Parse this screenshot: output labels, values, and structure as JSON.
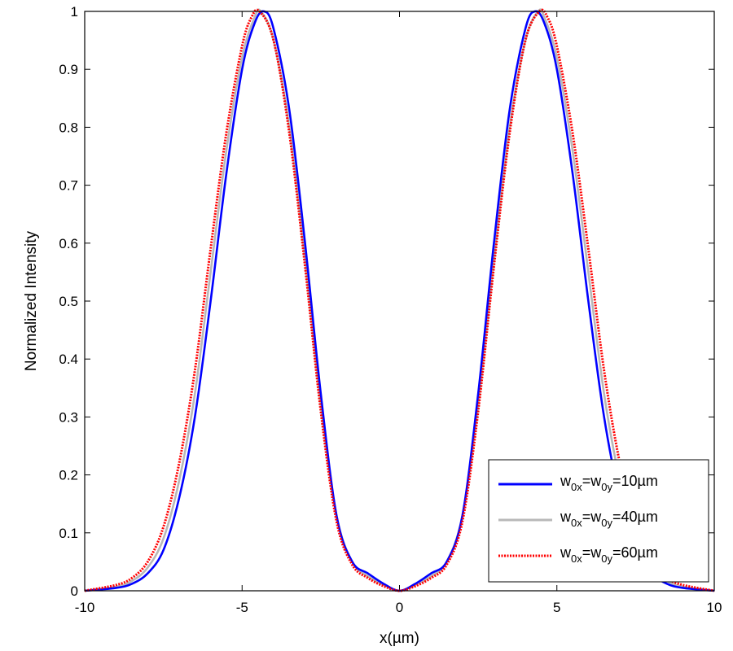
{
  "chart_data": {
    "type": "line",
    "title": "",
    "xlabel": "x(µm)",
    "ylabel": "Normalized Intensity",
    "xlim": [
      -10,
      10
    ],
    "ylim": [
      0,
      1
    ],
    "x_ticks": [
      -10,
      -5,
      0,
      5,
      10
    ],
    "y_ticks": [
      0,
      0.1,
      0.2,
      0.3,
      0.4,
      0.5,
      0.6,
      0.7,
      0.8,
      0.9,
      1
    ],
    "x_tick_labels": [
      "-10",
      "-5",
      "0",
      "5",
      "10"
    ],
    "y_tick_labels": [
      "0",
      "0.1",
      "0.2",
      "0.3",
      "0.4",
      "0.5",
      "0.6",
      "0.7",
      "0.8",
      "0.9",
      "1"
    ],
    "grid": false,
    "legend_position": "bottom-right",
    "series": [
      {
        "name": "w0x=w0y=10µm",
        "legend": {
          "base": "w",
          "sub1": "0x",
          "mid": "=w",
          "sub2": "0y",
          "tail": "=10µm"
        },
        "color": "#0000ff",
        "style": "solid",
        "x": [
          -10,
          -9,
          -8.5,
          -8,
          -7.5,
          -7,
          -6.5,
          -6,
          -5.5,
          -5,
          -4.6,
          -4.3,
          -4,
          -3.5,
          -3,
          -2.5,
          -2,
          -1.5,
          -1,
          -0.5,
          0,
          0.5,
          1,
          1.5,
          2,
          2.5,
          3,
          3.5,
          4,
          4.3,
          4.6,
          5,
          5.5,
          6,
          6.5,
          7,
          7.5,
          8,
          8.5,
          9,
          10
        ],
        "y": [
          0.0,
          0.005,
          0.012,
          0.03,
          0.07,
          0.16,
          0.3,
          0.5,
          0.72,
          0.9,
          0.98,
          1.0,
          0.97,
          0.83,
          0.6,
          0.34,
          0.13,
          0.05,
          0.03,
          0.012,
          0.0,
          0.012,
          0.03,
          0.05,
          0.13,
          0.34,
          0.6,
          0.83,
          0.97,
          1.0,
          0.98,
          0.9,
          0.72,
          0.5,
          0.3,
          0.16,
          0.07,
          0.03,
          0.012,
          0.005,
          0.0
        ]
      },
      {
        "name": "w0x=w0y=40µm",
        "legend": {
          "base": "w",
          "sub1": "0x",
          "mid": "=w",
          "sub2": "0y",
          "tail": "=40µm"
        },
        "color": "#b8b8b8",
        "style": "solid",
        "x": [
          -10,
          -9,
          -8.5,
          -8,
          -7.5,
          -7,
          -6.5,
          -6,
          -5.5,
          -5,
          -4.6,
          -4.4,
          -4,
          -3.5,
          -3,
          -2.5,
          -2,
          -1.5,
          -1,
          -0.5,
          0,
          0.5,
          1,
          1.5,
          2,
          2.5,
          3,
          3.5,
          4,
          4.4,
          4.6,
          5,
          5.5,
          6,
          6.5,
          7,
          7.5,
          8,
          8.5,
          9,
          10
        ],
        "y": [
          0.0,
          0.007,
          0.017,
          0.04,
          0.09,
          0.19,
          0.34,
          0.55,
          0.76,
          0.92,
          0.99,
          1.0,
          0.95,
          0.8,
          0.57,
          0.32,
          0.13,
          0.05,
          0.025,
          0.01,
          0.0,
          0.01,
          0.025,
          0.05,
          0.13,
          0.32,
          0.57,
          0.8,
          0.95,
          1.0,
          0.99,
          0.92,
          0.76,
          0.55,
          0.34,
          0.19,
          0.09,
          0.04,
          0.017,
          0.007,
          0.0
        ]
      },
      {
        "name": "w0x=w0y=60µm",
        "legend": {
          "base": "w",
          "sub1": "0x",
          "mid": "=w",
          "sub2": "0y",
          "tail": "=60µm"
        },
        "color": "#ff0000",
        "style": "dotted",
        "x": [
          -10,
          -9,
          -8.5,
          -8,
          -7.5,
          -7,
          -6.5,
          -6,
          -5.5,
          -5,
          -4.7,
          -4.45,
          -4,
          -3.5,
          -3,
          -2.5,
          -2,
          -1.5,
          -1,
          -0.5,
          0,
          0.5,
          1,
          1.5,
          2,
          2.5,
          3,
          3.5,
          4,
          4.45,
          4.7,
          5,
          5.5,
          6,
          6.5,
          7,
          7.5,
          8,
          8.5,
          9,
          10
        ],
        "y": [
          0.0,
          0.01,
          0.022,
          0.05,
          0.11,
          0.22,
          0.38,
          0.59,
          0.79,
          0.94,
          0.99,
          1.0,
          0.95,
          0.79,
          0.56,
          0.31,
          0.12,
          0.045,
          0.022,
          0.008,
          0.0,
          0.008,
          0.022,
          0.045,
          0.12,
          0.31,
          0.56,
          0.79,
          0.95,
          1.0,
          0.99,
          0.94,
          0.79,
          0.59,
          0.38,
          0.22,
          0.11,
          0.05,
          0.022,
          0.01,
          0.0
        ]
      }
    ]
  }
}
